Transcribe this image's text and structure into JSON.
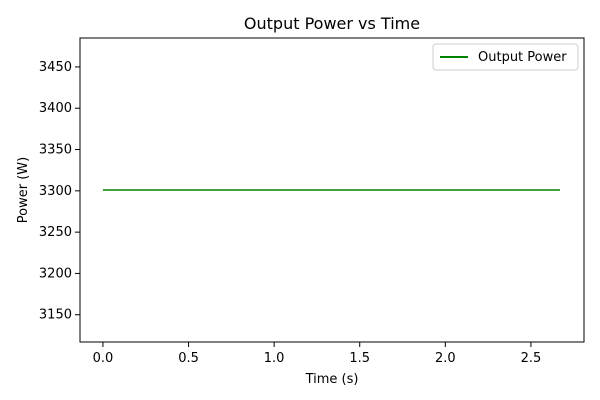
{
  "chart_data": {
    "type": "line",
    "title": "Output Power vs Time",
    "xlabel": "Time (s)",
    "ylabel": "Power (W)",
    "xlim": [
      -0.134,
      2.81
    ],
    "ylim": [
      3117,
      3485
    ],
    "xticks": [
      0.0,
      0.5,
      1.0,
      1.5,
      2.0,
      2.5
    ],
    "xtick_labels": [
      "0.0",
      "0.5",
      "1.0",
      "1.5",
      "2.0",
      "2.5"
    ],
    "yticks": [
      3150,
      3200,
      3250,
      3300,
      3350,
      3400,
      3450
    ],
    "ytick_labels": [
      "3150",
      "3200",
      "3250",
      "3300",
      "3350",
      "3400",
      "3450"
    ],
    "grid": false,
    "legend_position": "top-right",
    "series": [
      {
        "name": "Output Power",
        "color": "#008000",
        "x": [
          0.0,
          2.67
        ],
        "y": [
          3301,
          3301
        ]
      }
    ]
  }
}
